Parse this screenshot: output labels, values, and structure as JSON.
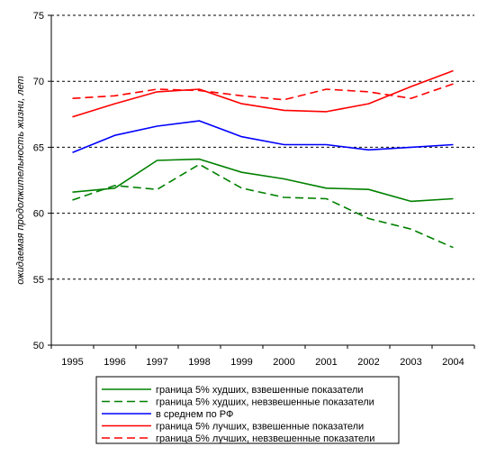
{
  "chart_data": {
    "type": "line",
    "title": "",
    "xlabel": "",
    "ylabel": "ожидаемая продолжительность жизни, лет",
    "x": [
      1995,
      1996,
      1997,
      1998,
      1999,
      2000,
      2001,
      2002,
      2003,
      2004
    ],
    "ylim": [
      50,
      75
    ],
    "yticks": [
      50,
      55,
      60,
      65,
      70,
      75
    ],
    "grid": "horizontal-dashed",
    "legend_position": "bottom",
    "series": [
      {
        "name": "граница 5% худших, взвешенные показатели",
        "color": "#008000",
        "dash": "solid",
        "values": [
          61.6,
          61.9,
          64.0,
          64.1,
          63.1,
          62.6,
          61.9,
          61.8,
          60.9,
          61.1
        ]
      },
      {
        "name": "граница 5% худших, невзвешенные показатели",
        "color": "#008000",
        "dash": "dashed",
        "values": [
          61.0,
          62.1,
          61.8,
          63.7,
          61.9,
          61.2,
          61.1,
          59.6,
          58.8,
          57.4
        ]
      },
      {
        "name": "в среднем по РФ",
        "color": "#0000ff",
        "dash": "solid",
        "values": [
          64.6,
          65.9,
          66.6,
          67.0,
          65.8,
          65.2,
          65.2,
          64.8,
          65.0,
          65.2
        ]
      },
      {
        "name": "граница 5% лучших, взвешенные показатели",
        "color": "#ff0000",
        "dash": "solid",
        "values": [
          67.3,
          68.3,
          69.2,
          69.4,
          68.3,
          67.8,
          67.7,
          68.3,
          69.6,
          70.8
        ]
      },
      {
        "name": "граница 5% лучших, невзвешенные показатели",
        "color": "#ff0000",
        "dash": "dashed",
        "values": [
          68.7,
          68.9,
          69.4,
          69.3,
          68.9,
          68.6,
          69.4,
          69.2,
          68.7,
          69.8
        ]
      }
    ]
  }
}
